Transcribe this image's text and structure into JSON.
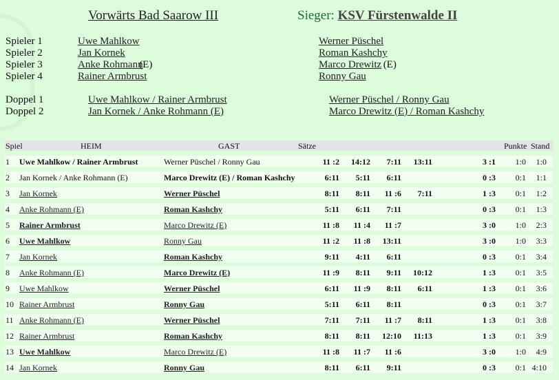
{
  "home_team": "Vorwärts Bad Saarow III",
  "winner_label": "Sieger:",
  "winner_team": "KSV Fürstenwalde II",
  "players": [
    {
      "label": "Spieler 1",
      "home": "Uwe Mahlkow",
      "home_suffix": "",
      "guest": "Werner Püschel",
      "guest_suffix": ""
    },
    {
      "label": "Spieler 2",
      "home": "Jan Kornek",
      "home_suffix": "",
      "guest": "Roman Kashchy",
      "guest_suffix": ""
    },
    {
      "label": "Spieler 3",
      "home": "Anke Rohmann",
      "home_suffix": "(E)",
      "guest": "Marco Drewitz",
      "guest_suffix": "(E)"
    },
    {
      "label": "Spieler 4",
      "home": "Rainer Armbrust",
      "home_suffix": "",
      "guest": "Ronny Gau",
      "guest_suffix": ""
    }
  ],
  "doubles": [
    {
      "label": "Doppel 1",
      "home": "Uwe Mahlkow / Rainer Armbrust",
      "guest": "Werner Püschel / Ronny Gau"
    },
    {
      "label": "Doppel 2",
      "home": "Jan Kornek / Anke Rohmann (E)",
      "guest": "Marco Drewitz (E) / Roman Kashchy"
    }
  ],
  "table_header": {
    "spiel": "Spiel",
    "heim": "HEIM",
    "gast": "GAST",
    "saetze": "Sätze",
    "punkte": "Punkte",
    "stand": "Stand"
  },
  "matches": [
    {
      "n": "1",
      "home": "Uwe Mahlkow  / Rainer Armbrust",
      "guest": "Werner Püschel  / Ronny Gau",
      "home_won": true,
      "sets": [
        "11 :2",
        "14:12",
        "7:11",
        "13:11"
      ],
      "result": "3 :1",
      "punkte": "1:0",
      "stand": "1:0"
    },
    {
      "n": "2",
      "home": "Jan Kornek  / Anke Rohmann (E)",
      "guest": "Marco Drewitz  (E) / Roman Kashchy",
      "home_won": false,
      "sets": [
        "6:11",
        "5:11",
        "6:11",
        ""
      ],
      "result": "0 :3",
      "punkte": "0:1",
      "stand": "1:1"
    },
    {
      "n": "3",
      "home": "Jan Kornek",
      "guest": "Werner Püschel",
      "home_won": false,
      "sets": [
        "8:11",
        "8:11",
        "11 :6",
        "7:11"
      ],
      "result": "1 :3",
      "punkte": "0:1",
      "stand": "1:2"
    },
    {
      "n": "4",
      "home": "Anke Rohmann  (E)",
      "guest": "Roman Kashchy",
      "home_won": false,
      "sets": [
        "5:11",
        "6:11",
        "7:11",
        ""
      ],
      "result": "0 :3",
      "punkte": "0:1",
      "stand": "1:3"
    },
    {
      "n": "5",
      "home": "Rainer Armbrust",
      "guest": "Marco Drewitz  (E)",
      "home_won": true,
      "sets": [
        "11 :8",
        "11 :4",
        "11 :7",
        ""
      ],
      "result": "3 :0",
      "punkte": "1:0",
      "stand": "2:3"
    },
    {
      "n": "6",
      "home": "Uwe Mahlkow",
      "guest": "Ronny Gau",
      "home_won": true,
      "sets": [
        "11 :2",
        "11 :8",
        "13:11",
        ""
      ],
      "result": "3 :0",
      "punkte": "1:0",
      "stand": "3:3"
    },
    {
      "n": "7",
      "home": "Jan Kornek",
      "guest": "Roman Kashchy",
      "home_won": false,
      "sets": [
        "9:11",
        "4:11",
        "6:11",
        ""
      ],
      "result": "0 :3",
      "punkte": "0:1",
      "stand": "3:4"
    },
    {
      "n": "8",
      "home": "Anke Rohmann  (E)",
      "guest": "Marco Drewitz  (E)",
      "home_won": false,
      "sets": [
        "11 :9",
        "8:11",
        "9:11",
        "10:12"
      ],
      "result": "1 :3",
      "punkte": "0:1",
      "stand": "3:5"
    },
    {
      "n": "9",
      "home": "Uwe Mahlkow",
      "guest": "Werner Püschel",
      "home_won": false,
      "sets": [
        "6:11",
        "11 :9",
        "8:11",
        "6:11"
      ],
      "result": "1 :3",
      "punkte": "0:1",
      "stand": "3:6"
    },
    {
      "n": "10",
      "home": "Rainer Armbrust",
      "guest": "Ronny Gau",
      "home_won": false,
      "sets": [
        "5:11",
        "6:11",
        "8:11",
        ""
      ],
      "result": "0 :3",
      "punkte": "0:1",
      "stand": "3:7"
    },
    {
      "n": "11",
      "home": "Anke Rohmann  (E)",
      "guest": "Werner Püschel",
      "home_won": false,
      "sets": [
        "7:11",
        "7:11",
        "11 :7",
        "8:11"
      ],
      "result": "1 :3",
      "punkte": "0:1",
      "stand": "3:8"
    },
    {
      "n": "12",
      "home": "Rainer Armbrust",
      "guest": "Roman Kashchy",
      "home_won": false,
      "sets": [
        "8:11",
        "8:11",
        "12:10",
        "11:13"
      ],
      "result": "1 :3",
      "punkte": "0:1",
      "stand": "3:9"
    },
    {
      "n": "13",
      "home": "Uwe Mahlkow",
      "guest": "Marco Drewitz  (E)",
      "home_won": true,
      "sets": [
        "11 :8",
        "11 :7",
        "11 :6",
        ""
      ],
      "result": "3 :0",
      "punkte": "1:0",
      "stand": "4:9"
    },
    {
      "n": "14",
      "home": "Jan Kornek",
      "guest": "Ronny Gau",
      "home_won": false,
      "sets": [
        "8:11",
        "6:11",
        "9:11",
        ""
      ],
      "result": "0 :3",
      "punkte": "0:1",
      "stand": "4:10"
    }
  ]
}
